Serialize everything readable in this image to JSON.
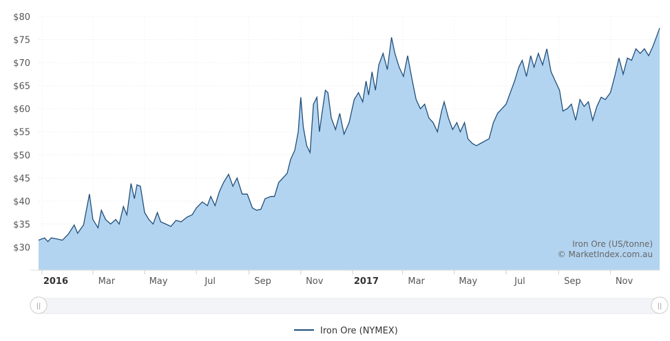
{
  "chart_data": {
    "type": "area",
    "title": "",
    "xlabel": "",
    "ylabel": "",
    "ylim": [
      25,
      80
    ],
    "y_ticks": [
      30,
      35,
      40,
      45,
      50,
      55,
      60,
      65,
      70,
      75,
      80
    ],
    "y_tick_labels": [
      "$30",
      "$35",
      "$40",
      "$45",
      "$50",
      "$55",
      "$60",
      "$65",
      "$70",
      "$75",
      "$80"
    ],
    "x_range": [
      "2015-12-28",
      "2017-12-29"
    ],
    "x_ticks": [
      {
        "date": "2016-01-01",
        "label": "2016",
        "major": true
      },
      {
        "date": "2016-03-01",
        "label": "Mar",
        "major": false
      },
      {
        "date": "2016-05-01",
        "label": "May",
        "major": false
      },
      {
        "date": "2016-07-01",
        "label": "Jul",
        "major": false
      },
      {
        "date": "2016-09-01",
        "label": "Sep",
        "major": false
      },
      {
        "date": "2016-11-01",
        "label": "Nov",
        "major": false
      },
      {
        "date": "2017-01-01",
        "label": "2017",
        "major": true
      },
      {
        "date": "2017-03-01",
        "label": "Mar",
        "major": false
      },
      {
        "date": "2017-05-01",
        "label": "May",
        "major": false
      },
      {
        "date": "2017-07-01",
        "label": "Jul",
        "major": false
      },
      {
        "date": "2017-09-01",
        "label": "Sep",
        "major": false
      },
      {
        "date": "2017-11-01",
        "label": "Nov",
        "major": false
      }
    ],
    "grid": true,
    "legend_position": "bottom-center",
    "credits": [
      "Iron Ore (US/tonne)",
      "© MarketIndex.com.au"
    ],
    "series": [
      {
        "name": "Iron Ore (NYMEX)",
        "line_color": "#1f4e79",
        "fill_color": "#b3d4f0",
        "points": [
          [
            "2015-12-28",
            31.5
          ],
          [
            "2016-01-04",
            32.0
          ],
          [
            "2016-01-08",
            31.2
          ],
          [
            "2016-01-12",
            32.0
          ],
          [
            "2016-01-18",
            31.8
          ],
          [
            "2016-01-25",
            31.5
          ],
          [
            "2016-02-01",
            32.8
          ],
          [
            "2016-02-08",
            34.8
          ],
          [
            "2016-02-12",
            33.0
          ],
          [
            "2016-02-19",
            34.8
          ],
          [
            "2016-02-26",
            41.5
          ],
          [
            "2016-03-01",
            36.0
          ],
          [
            "2016-03-07",
            34.2
          ],
          [
            "2016-03-11",
            38.0
          ],
          [
            "2016-03-16",
            36.0
          ],
          [
            "2016-03-22",
            35.0
          ],
          [
            "2016-03-28",
            36.0
          ],
          [
            "2016-04-01",
            35.0
          ],
          [
            "2016-04-06",
            38.8
          ],
          [
            "2016-04-10",
            37.0
          ],
          [
            "2016-04-15",
            43.8
          ],
          [
            "2016-04-19",
            40.5
          ],
          [
            "2016-04-22",
            43.5
          ],
          [
            "2016-04-26",
            43.2
          ],
          [
            "2016-05-01",
            37.5
          ],
          [
            "2016-05-06",
            36.0
          ],
          [
            "2016-05-11",
            35.0
          ],
          [
            "2016-05-16",
            37.5
          ],
          [
            "2016-05-20",
            35.5
          ],
          [
            "2016-05-26",
            35.0
          ],
          [
            "2016-06-01",
            34.5
          ],
          [
            "2016-06-07",
            35.8
          ],
          [
            "2016-06-13",
            35.5
          ],
          [
            "2016-06-20",
            36.5
          ],
          [
            "2016-06-26",
            37.0
          ],
          [
            "2016-07-01",
            38.5
          ],
          [
            "2016-07-08",
            39.8
          ],
          [
            "2016-07-14",
            39.0
          ],
          [
            "2016-07-18",
            41.0
          ],
          [
            "2016-07-23",
            39.0
          ],
          [
            "2016-07-28",
            42.0
          ],
          [
            "2016-08-02",
            44.0
          ],
          [
            "2016-08-08",
            45.8
          ],
          [
            "2016-08-13",
            43.2
          ],
          [
            "2016-08-18",
            45.0
          ],
          [
            "2016-08-24",
            41.5
          ],
          [
            "2016-08-30",
            41.5
          ],
          [
            "2016-09-05",
            38.5
          ],
          [
            "2016-09-10",
            38.0
          ],
          [
            "2016-09-15",
            38.2
          ],
          [
            "2016-09-20",
            40.5
          ],
          [
            "2016-09-27",
            41.0
          ],
          [
            "2016-10-01",
            41.0
          ],
          [
            "2016-10-06",
            44.0
          ],
          [
            "2016-10-11",
            45.0
          ],
          [
            "2016-10-16",
            46.0
          ],
          [
            "2016-10-20",
            49.0
          ],
          [
            "2016-10-25",
            51.0
          ],
          [
            "2016-10-29",
            55.0
          ],
          [
            "2016-11-01",
            62.5
          ],
          [
            "2016-11-04",
            56.0
          ],
          [
            "2016-11-08",
            52.0
          ],
          [
            "2016-11-12",
            50.5
          ],
          [
            "2016-11-16",
            61.0
          ],
          [
            "2016-11-20",
            62.5
          ],
          [
            "2016-11-23",
            55.0
          ],
          [
            "2016-11-26",
            59.0
          ],
          [
            "2016-11-30",
            64.0
          ],
          [
            "2016-12-03",
            63.5
          ],
          [
            "2016-12-07",
            58.0
          ],
          [
            "2016-12-12",
            55.5
          ],
          [
            "2016-12-17",
            59.0
          ],
          [
            "2016-12-22",
            54.5
          ],
          [
            "2016-12-28",
            57.0
          ],
          [
            "2017-01-03",
            62.0
          ],
          [
            "2017-01-08",
            63.5
          ],
          [
            "2017-01-13",
            61.5
          ],
          [
            "2017-01-17",
            66.0
          ],
          [
            "2017-01-20",
            63.0
          ],
          [
            "2017-01-24",
            68.0
          ],
          [
            "2017-01-28",
            64.0
          ],
          [
            "2017-02-01",
            69.5
          ],
          [
            "2017-02-06",
            72.0
          ],
          [
            "2017-02-11",
            68.5
          ],
          [
            "2017-02-16",
            75.5
          ],
          [
            "2017-02-20",
            72.0
          ],
          [
            "2017-02-25",
            69.0
          ],
          [
            "2017-03-02",
            67.0
          ],
          [
            "2017-03-07",
            71.5
          ],
          [
            "2017-03-12",
            66.5
          ],
          [
            "2017-03-17",
            62.0
          ],
          [
            "2017-03-22",
            60.0
          ],
          [
            "2017-03-27",
            61.0
          ],
          [
            "2017-04-01",
            58.0
          ],
          [
            "2017-04-06",
            57.0
          ],
          [
            "2017-04-11",
            55.0
          ],
          [
            "2017-04-16",
            59.5
          ],
          [
            "2017-04-19",
            61.5
          ],
          [
            "2017-04-24",
            58.0
          ],
          [
            "2017-04-29",
            55.5
          ],
          [
            "2017-05-04",
            57.0
          ],
          [
            "2017-05-08",
            55.0
          ],
          [
            "2017-05-13",
            57.0
          ],
          [
            "2017-05-17",
            53.5
          ],
          [
            "2017-05-22",
            52.5
          ],
          [
            "2017-05-27",
            52.0
          ],
          [
            "2017-06-01",
            52.5
          ],
          [
            "2017-06-06",
            53.0
          ],
          [
            "2017-06-11",
            53.5
          ],
          [
            "2017-06-16",
            57.0
          ],
          [
            "2017-06-21",
            59.0
          ],
          [
            "2017-06-26",
            60.0
          ],
          [
            "2017-07-01",
            61.0
          ],
          [
            "2017-07-06",
            63.5
          ],
          [
            "2017-07-11",
            66.0
          ],
          [
            "2017-07-16",
            69.0
          ],
          [
            "2017-07-20",
            70.5
          ],
          [
            "2017-07-25",
            67.0
          ],
          [
            "2017-07-30",
            71.5
          ],
          [
            "2017-08-03",
            69.0
          ],
          [
            "2017-08-08",
            72.0
          ],
          [
            "2017-08-13",
            69.5
          ],
          [
            "2017-08-18",
            73.0
          ],
          [
            "2017-08-23",
            68.0
          ],
          [
            "2017-08-28",
            66.0
          ],
          [
            "2017-09-02",
            64.0
          ],
          [
            "2017-09-06",
            59.5
          ],
          [
            "2017-09-11",
            60.0
          ],
          [
            "2017-09-16",
            61.0
          ],
          [
            "2017-09-21",
            57.5
          ],
          [
            "2017-09-26",
            62.0
          ],
          [
            "2017-10-01",
            60.5
          ],
          [
            "2017-10-06",
            61.5
          ],
          [
            "2017-10-11",
            57.5
          ],
          [
            "2017-10-16",
            60.5
          ],
          [
            "2017-10-21",
            62.5
          ],
          [
            "2017-10-26",
            62.0
          ],
          [
            "2017-11-01",
            63.5
          ],
          [
            "2017-11-06",
            67.0
          ],
          [
            "2017-11-11",
            71.0
          ],
          [
            "2017-11-16",
            67.5
          ],
          [
            "2017-11-21",
            71.0
          ],
          [
            "2017-11-26",
            70.5
          ],
          [
            "2017-12-01",
            73.0
          ],
          [
            "2017-12-06",
            72.0
          ],
          [
            "2017-12-11",
            73.0
          ],
          [
            "2017-12-16",
            71.5
          ],
          [
            "2017-12-21",
            73.5
          ],
          [
            "2017-12-25",
            75.5
          ],
          [
            "2017-12-29",
            77.5
          ]
        ]
      }
    ]
  },
  "navigator": {
    "left_handle_glyph": "||",
    "right_handle_glyph": "||"
  },
  "legend": {
    "label": "Iron Ore (NYMEX)"
  }
}
